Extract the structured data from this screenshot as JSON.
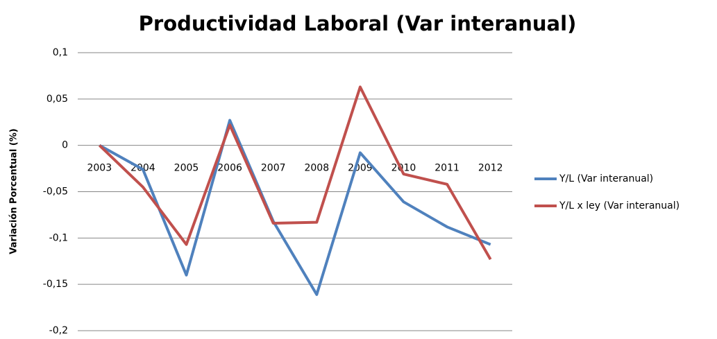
{
  "chart_data": {
    "type": "line",
    "title": "Productividad Laboral (Var interanual)",
    "y_label": "Variación Porcentual (%)",
    "categories": [
      "2003",
      "2004",
      "2005",
      "2006",
      "2007",
      "2008",
      "2009",
      "2010",
      "2011",
      "2012"
    ],
    "series": [
      {
        "name": "Y/L (Var interanual)",
        "color": "#4f81bd",
        "values": [
          0,
          -0.026,
          -0.14,
          0.027,
          -0.082,
          -0.161,
          -0.008,
          -0.061,
          -0.088,
          -0.107
        ]
      },
      {
        "name": "Y/L x ley (Var interanual)",
        "color": "#c0504d",
        "values": [
          0,
          -0.045,
          -0.107,
          0.022,
          -0.084,
          -0.083,
          0.063,
          -0.031,
          -0.042,
          -0.123
        ]
      }
    ],
    "ylim": [
      -0.2,
      0.1
    ],
    "yticks": [
      {
        "value": 0.1,
        "label": "0,1"
      },
      {
        "value": 0.05,
        "label": "0,05"
      },
      0,
      {
        "value": -0.05,
        "label": "-0,05"
      },
      {
        "value": -0.1,
        "label": "-0,1"
      },
      {
        "value": -0.15,
        "label": "-0,15"
      },
      {
        "value": -0.2,
        "label": "-0,2"
      }
    ],
    "grid": true,
    "legend": "right"
  }
}
